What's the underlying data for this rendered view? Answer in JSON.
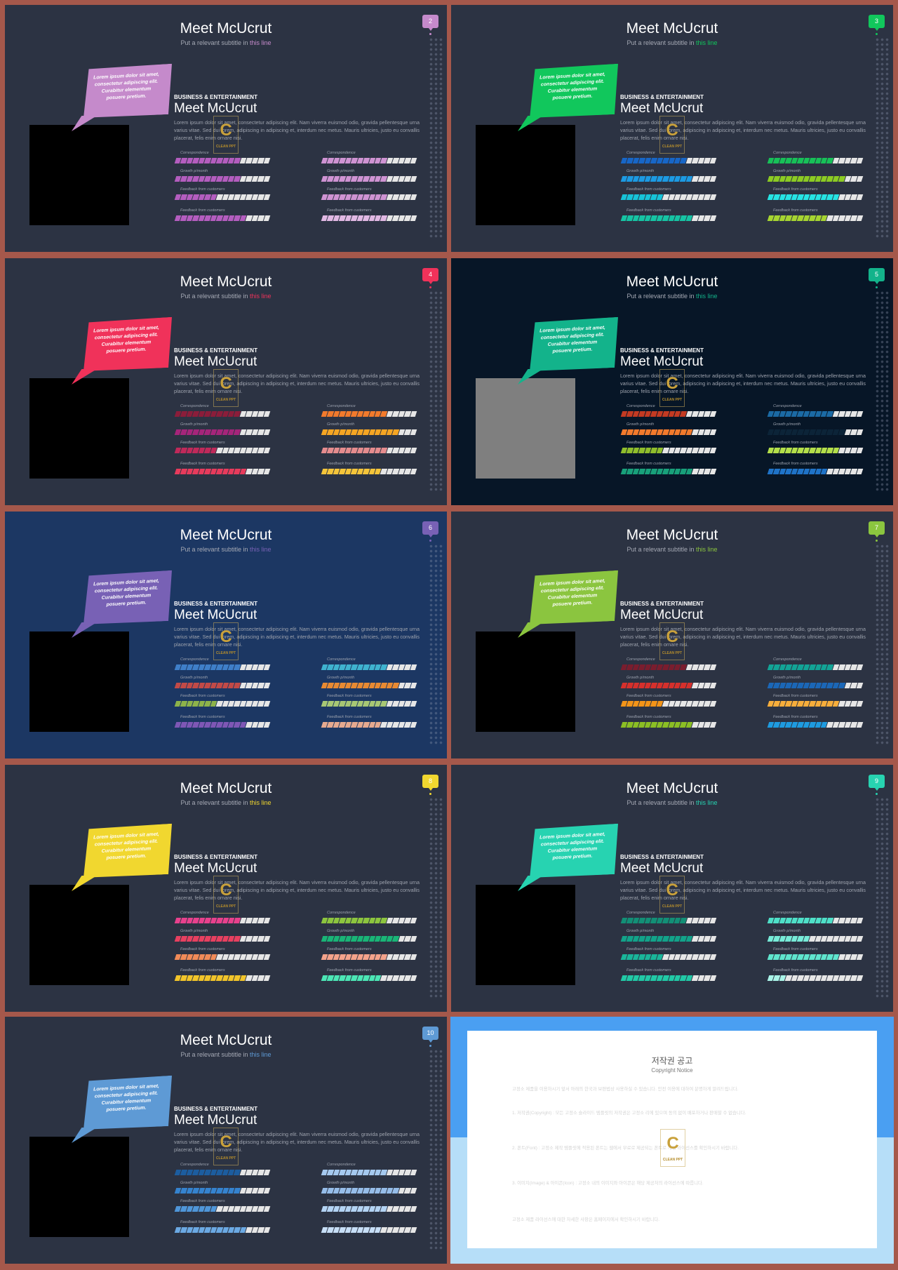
{
  "common": {
    "title": "Meet McUcrut",
    "subtitle_pre": "Put a relevant subtitle in ",
    "subtitle_hl": "this line",
    "bubble": "Lorem ipsum dolor sit amet, consectetur adipiscing elit. Curabitur elementum posuere pretium.",
    "section": "BUSINESS & ENTERTAINMENT",
    "heading": "Meet McUcrut",
    "body": "Lorem ipsum dolor sit amet, consectetur adipiscing elit. Nam viverra euismod odio, gravida pellentesque urna varius vitae. Sed dui lorem, adipiscing in adipiscing et, interdum nec metus. Mauris ultricies, justo eu convallis placerat, felis enim ornare nisi.",
    "labels": [
      "Correspondence",
      "Growth p/month",
      "Feedback from customers",
      "Feedback from customers"
    ],
    "logo_letter": "C",
    "logo_text": "CLEAN PPT"
  },
  "slides": [
    {
      "num": "2",
      "bg": "#2c3343",
      "accent": "#c58acb",
      "photo": "#000000",
      "left": [
        [
          "#b45dbf",
          0.7
        ],
        [
          "#b45dbf",
          0.7
        ],
        [
          "#b45dbf",
          0.45
        ],
        [
          "#b45dbf",
          0.75
        ]
      ],
      "right": [
        [
          "#cf93d3",
          0.7
        ],
        [
          "#cf93d3",
          0.7
        ],
        [
          "#cf93d3",
          0.7
        ],
        [
          "#e0b8e3",
          0.7
        ]
      ]
    },
    {
      "num": "3",
      "bg": "#2c3343",
      "accent": "#11c75c",
      "photo": "#000000",
      "left": [
        [
          "#1766c7",
          0.7
        ],
        [
          "#1c9ae3",
          0.75
        ],
        [
          "#17c3d8",
          0.45
        ],
        [
          "#16c4a4",
          0.75
        ]
      ],
      "right": [
        [
          "#17c158",
          0.7
        ],
        [
          "#8ccb23",
          0.8
        ],
        [
          "#26e4e4",
          0.75
        ],
        [
          "#a6d431",
          0.6
        ]
      ]
    },
    {
      "num": "4",
      "bg": "#2c3343",
      "accent": "#f0325a",
      "photo": "#000000",
      "left": [
        [
          "#8b1d3a",
          0.7
        ],
        [
          "#a5257a",
          0.7
        ],
        [
          "#c0295a",
          0.45
        ],
        [
          "#e73b5c",
          0.75
        ]
      ],
      "right": [
        [
          "#f27a2c",
          0.7
        ],
        [
          "#f5a523",
          0.8
        ],
        [
          "#e58c8e",
          0.7
        ],
        [
          "#f5c53a",
          0.6
        ]
      ]
    },
    {
      "num": "5",
      "bg": "#071627",
      "accent": "#13b38b",
      "photo": "#7f7f7f",
      "left": [
        [
          "#c33a22",
          0.7
        ],
        [
          "#f27a2c",
          0.75
        ],
        [
          "#8fbd2c",
          0.45
        ],
        [
          "#18a07a",
          0.75
        ]
      ],
      "right": [
        [
          "#1b6aa4",
          0.7
        ],
        [
          "#0c2438",
          0.8
        ],
        [
          "#b4df4a",
          0.75
        ],
        [
          "#1f73c8",
          0.6
        ]
      ]
    },
    {
      "num": "6",
      "bg": "#1c3763",
      "accent": "#7861b5",
      "photo": "#000000",
      "left": [
        [
          "#3f7fc9",
          0.7
        ],
        [
          "#c24a47",
          0.7
        ],
        [
          "#8db34a",
          0.45
        ],
        [
          "#7e57b5",
          0.75
        ]
      ],
      "right": [
        [
          "#3fb3cf",
          0.7
        ],
        [
          "#e88a32",
          0.8
        ],
        [
          "#a7c774",
          0.7
        ],
        [
          "#e6a98f",
          0.6
        ]
      ]
    },
    {
      "num": "7",
      "bg": "#2c3343",
      "accent": "#8bc53f",
      "photo": "#000000",
      "left": [
        [
          "#7a1d2e",
          0.7
        ],
        [
          "#d6302c",
          0.75
        ],
        [
          "#f39418",
          0.45
        ],
        [
          "#8bbf24",
          0.75
        ]
      ],
      "right": [
        [
          "#12a496",
          0.7
        ],
        [
          "#1b67b7",
          0.8
        ],
        [
          "#f7ae3b",
          0.75
        ],
        [
          "#1e9be0",
          0.6
        ]
      ]
    },
    {
      "num": "8",
      "bg": "#2c3343",
      "accent": "#f1d72f",
      "photo": "#000000",
      "left": [
        [
          "#e8418d",
          0.7
        ],
        [
          "#e84060",
          0.7
        ],
        [
          "#f18b58",
          0.45
        ],
        [
          "#f1c42a",
          0.75
        ]
      ],
      "right": [
        [
          "#8cc53e",
          0.7
        ],
        [
          "#19b577",
          0.8
        ],
        [
          "#f4a38b",
          0.7
        ],
        [
          "#4ce6b5",
          0.6
        ]
      ]
    },
    {
      "num": "9",
      "bg": "#2c3343",
      "accent": "#27d3b1",
      "photo": "#000000",
      "left": [
        [
          "#128f76",
          0.7
        ],
        [
          "#12a38a",
          0.75
        ],
        [
          "#1ab69a",
          0.45
        ],
        [
          "#21c9a6",
          0.75
        ]
      ],
      "right": [
        [
          "#4ee0c8",
          0.7
        ],
        [
          "#77ebd8",
          0.45
        ],
        [
          "#5fe5cd",
          0.75
        ],
        [
          "#a9f3e7",
          0.2
        ]
      ]
    },
    {
      "num": "10",
      "bg": "#2c3343",
      "accent": "#5e9ad5",
      "photo": "#000000",
      "left": [
        [
          "#1c5d9f",
          0.7
        ],
        [
          "#3583cf",
          0.7
        ],
        [
          "#4f96d9",
          0.45
        ],
        [
          "#6ba9e3",
          0.75
        ]
      ],
      "right": [
        [
          "#a5c9ef",
          0.7
        ],
        [
          "#96bde9",
          0.8
        ],
        [
          "#b3d3f3",
          0.7
        ],
        [
          "#c7def6",
          0.6
        ]
      ]
    }
  ],
  "copyright": {
    "title": "저작권 공고",
    "subtitle": "Copyright Notice",
    "paragraphs": [
      "고정소 제품을 이용하시기 앞서 아래의 한국과 보편법상 사용하실 수 있습니다. 안전 이용에 대하여 분명하게 알려드립니다.",
      "1. 저작권(Copyright) : 모든 고정소 슬라이드 템플릿의 저작권은 고정소 리에 있으며 동의 없이 배포하거나 판매할 수 없습니다.",
      "2. 폰트(Font) : 고정소 제작 템플릿에 적용된 폰트는 웹에서 무료로 제공되는 폰트로 개별 라이선스를 확인하시기 바랍니다.",
      "3. 이미지(Image) & 아이콘(Icon) : 고정소 내의 이미지와 아이콘은 해당 제공처의 라이선스에 따릅니다.",
      "고정소 제품 라이선스에 대한 자세한 사항은 홈페이지에서 확인하시기 바랍니다."
    ]
  }
}
